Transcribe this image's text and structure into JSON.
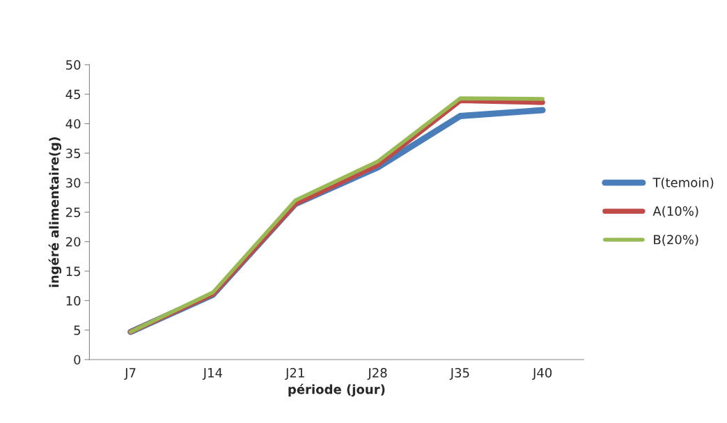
{
  "chart_data": {
    "type": "line",
    "xlabel": "période (jour)",
    "ylabel": "ingéré alimentaire(g)",
    "categories": [
      "J7",
      "J14",
      "J21",
      "J28",
      "J35",
      "J40"
    ],
    "series": [
      {
        "name": "T(temoin)",
        "color": "#4a7ebb",
        "values": [
          4.7,
          11.0,
          26.4,
          32.6,
          41.3,
          42.3
        ]
      },
      {
        "name": "A(10%)",
        "color": "#be4b48",
        "values": [
          4.7,
          11.1,
          26.4,
          33.0,
          43.9,
          43.6
        ]
      },
      {
        "name": "B(20%)",
        "color": "#98b954",
        "values": [
          4.7,
          11.4,
          27.0,
          33.6,
          44.3,
          44.2
        ]
      }
    ],
    "ylim": [
      0,
      50
    ],
    "yticks": [
      0,
      5,
      10,
      15,
      20,
      25,
      30,
      35,
      40,
      45,
      50
    ],
    "grid": false,
    "legend": "right",
    "marker": "none",
    "line_style": "solid"
  }
}
